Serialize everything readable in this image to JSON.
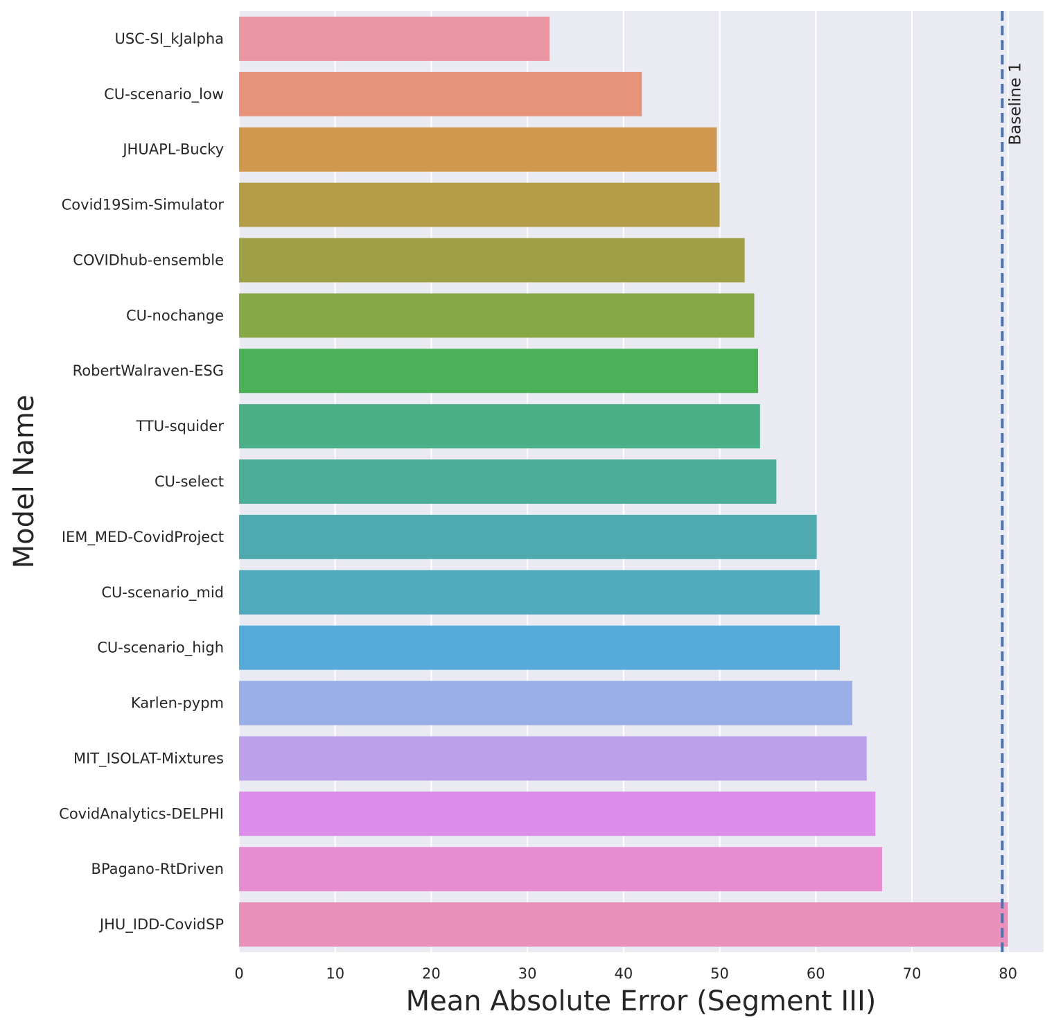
{
  "chart_data": {
    "type": "bar",
    "orientation": "horizontal",
    "title": "",
    "xlabel": "Mean Absolute Error (Segment III)",
    "ylabel": "Model Name",
    "xlim": [
      0,
      83.7
    ],
    "xticks": [
      0,
      10,
      20,
      30,
      40,
      50,
      60,
      70,
      80
    ],
    "grid": true,
    "background": "#eaeaf2",
    "categories": [
      "USC-SI_kJalpha",
      "CU-scenario_low",
      "JHUAPL-Bucky",
      "Covid19Sim-Simulator",
      "COVIDhub-ensemble",
      "CU-nochange",
      "RobertWalraven-ESG",
      "TTU-squider",
      "CU-select",
      "IEM_MED-CovidProject",
      "CU-scenario_mid",
      "CU-scenario_high",
      "Karlen-pypm",
      "MIT_ISOLAT-Mixtures",
      "CovidAnalytics-DELPHI",
      "BPagano-RtDriven",
      "JHU_IDD-CovidSP"
    ],
    "values": [
      32.3,
      41.9,
      49.7,
      50.0,
      52.6,
      53.6,
      54.0,
      54.2,
      55.9,
      60.1,
      60.4,
      62.5,
      63.8,
      65.3,
      66.2,
      66.9,
      80.0
    ],
    "colors": [
      "#ea96a3",
      "#e8947b",
      "#d0984c",
      "#b49d48",
      "#9fa045",
      "#86a846",
      "#4bb058",
      "#4baf87",
      "#4cae99",
      "#4eaaae",
      "#50abbf",
      "#55aad9",
      "#9aaee7",
      "#bca1ea",
      "#dc8eea",
      "#e88dd1",
      "#e991bb"
    ],
    "reference_line": {
      "label": "Baseline 1",
      "value": 79.4,
      "color": "#4c72b0",
      "style": "dashed"
    }
  }
}
